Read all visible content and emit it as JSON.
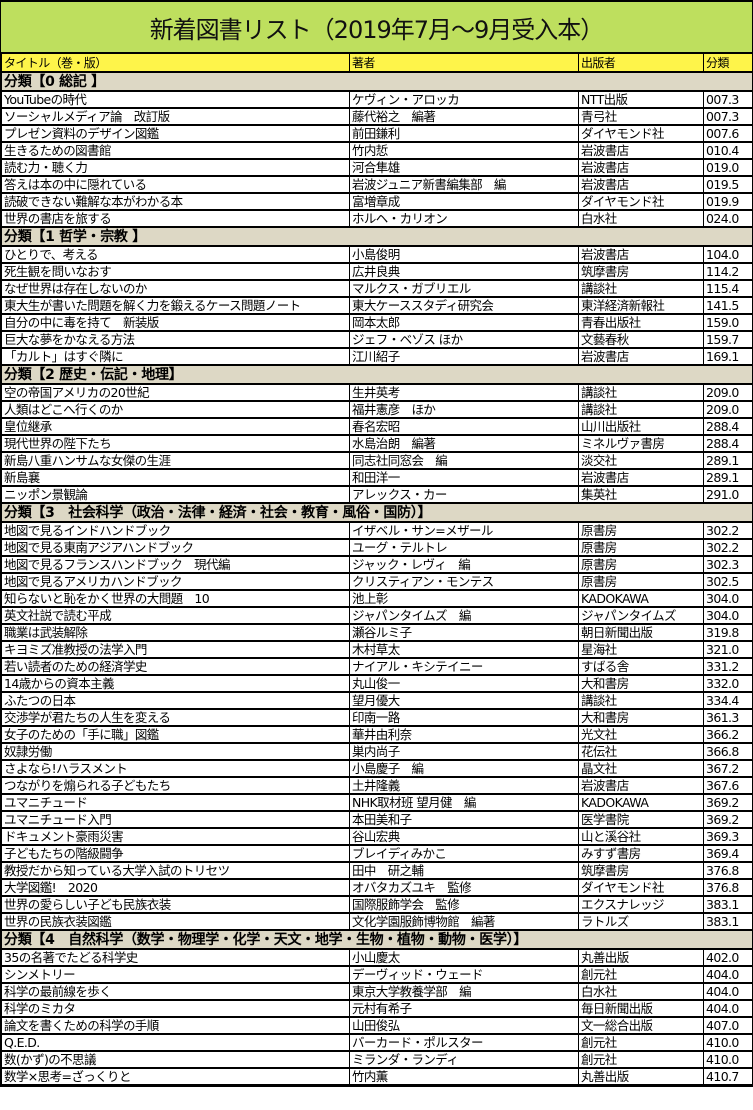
{
  "title": "新着図書リスト（2019年7月～9月受入本）",
  "columns": [
    "タイトル（巻・版）",
    "著者",
    "出版者",
    "分類"
  ],
  "colors": {
    "title_bg": "#bedf5e",
    "header_bg": "#fef44a",
    "category_bg": "#ddd8c5"
  },
  "sections": [
    {
      "label": "分類【0 総記 】",
      "rows": [
        [
          "YouTubeの時代",
          "ケヴィン・アロッカ",
          "NTT出版",
          "007.3"
        ],
        [
          "ソーシャルメディア論　改訂版",
          "藤代裕之　編著",
          "青弓社",
          "007.3"
        ],
        [
          "プレゼン資料のデザイン図鑑",
          "前田鎌利",
          "ダイヤモンド社",
          "007.6"
        ],
        [
          "生きるための図書館",
          "竹内悊",
          "岩波書店",
          "010.4"
        ],
        [
          "読む力・聴く力",
          "河合隼雄",
          "岩波書店",
          "019.0"
        ],
        [
          "答えは本の中に隠れている",
          "岩波ジュニア新書編集部　編",
          "岩波書店",
          "019.5"
        ],
        [
          "読破できない難解な本がわかる本",
          "富増章成",
          "ダイヤモンド社",
          "019.9"
        ],
        [
          "世界の書店を旅する",
          "ホルヘ・カリオン",
          "白水社",
          "024.0"
        ]
      ]
    },
    {
      "label": "分類【1 哲学・宗教 】",
      "rows": [
        [
          "ひとりで、考える",
          "小島俊明",
          "岩波書店",
          "104.0"
        ],
        [
          "死生観を問いなおす",
          "広井良典",
          "筑摩書房",
          "114.2"
        ],
        [
          "なぜ世界は存在しないのか",
          "マルクス・ガブリエル",
          "講談社",
          "115.4"
        ],
        [
          "東大生が書いた問題を解く力を鍛えるケース問題ノート",
          "東大ケーススタディ研究会",
          "東洋経済新報社",
          "141.5"
        ],
        [
          "自分の中に毒を持て　新装版",
          "岡本太郎",
          "青春出版社",
          "159.0"
        ],
        [
          "巨大な夢をかなえる方法",
          "ジェフ・ベゾス ほか",
          "文藝春秋",
          "159.7"
        ],
        [
          "「カルト」はすぐ隣に",
          "江川紹子",
          "岩波書店",
          "169.1"
        ]
      ]
    },
    {
      "label": "分類【2 歴史・伝記・地理】",
      "rows": [
        [
          "空の帝国アメリカの20世紀",
          "生井英考",
          "講談社",
          "209.0"
        ],
        [
          "人類はどこへ行くのか",
          "福井憲彦　ほか",
          "講談社",
          "209.0"
        ],
        [
          "皇位継承",
          "春名宏昭",
          "山川出版社",
          "288.4"
        ],
        [
          "現代世界の陛下たち",
          "水島治朗　編著",
          "ミネルヴァ書房",
          "288.4"
        ],
        [
          "新島八重ハンサムな女傑の生涯",
          "同志社同窓会　編",
          "淡交社",
          "289.1"
        ],
        [
          "新島襄",
          "和田洋一",
          "岩波書店",
          "289.1"
        ],
        [
          "ニッポン景観論",
          "アレックス・カー",
          "集英社",
          "291.0"
        ]
      ]
    },
    {
      "label": "分類【3　社会科学（政治・法律・経済・社会・教育・風俗・国防）】",
      "rows": [
        [
          "地図で見るインドハンドブック",
          "イザベル・サン=メザール",
          "原書房",
          "302.2"
        ],
        [
          "地図で見る東南アジアハンドブック",
          "ユーグ・テルトレ",
          "原書房",
          "302.2"
        ],
        [
          "地図で見るフランスハンドブック　現代編",
          "ジャック・レヴィ　編",
          "原書房",
          "302.3"
        ],
        [
          "地図で見るアメリカハンドブック",
          "クリスティアン・モンテス",
          "原書房",
          "302.5"
        ],
        [
          "知らないと恥をかく世界の大問題　10",
          "池上彰",
          "KADOKAWA",
          "304.0"
        ],
        [
          "英文社説で読む平成",
          "ジャパンタイムズ　編",
          "ジャパンタイムズ",
          "304.0"
        ],
        [
          "職業は武装解除",
          "瀬谷ルミ子",
          "朝日新聞出版",
          "319.8"
        ],
        [
          "キヨミズ准教授の法学入門",
          "木村草太",
          "星海社",
          "321.0"
        ],
        [
          "若い読者のための経済学史",
          "ナイアル・キシテイニー",
          "すばる舎",
          "331.2"
        ],
        [
          "14歳からの資本主義",
          "丸山俊一",
          "大和書房",
          "332.0"
        ],
        [
          "ふたつの日本",
          "望月優大",
          "講談社",
          "334.4"
        ],
        [
          "交渉学が君たちの人生を変える",
          "印南一路",
          "大和書房",
          "361.3"
        ],
        [
          "女子のための「手に職」図鑑",
          "華井由利奈",
          "光文社",
          "366.2"
        ],
        [
          "奴隷労働",
          "巣内尚子",
          "花伝社",
          "366.8"
        ],
        [
          "さよなら!ハラスメント",
          "小島慶子　編",
          "晶文社",
          "367.2"
        ],
        [
          "つながりを煽られる子どもたち",
          "土井隆義",
          "岩波書店",
          "367.6"
        ],
        [
          "ユマニチュード",
          "NHK取材班 望月健　編",
          "KADOKAWA",
          "369.2"
        ],
        [
          "ユマニチュード入門",
          "本田美和子",
          "医学書院",
          "369.2"
        ],
        [
          "ドキュメント豪雨災害",
          "谷山宏典",
          "山と溪谷社",
          "369.3"
        ],
        [
          "子どもたちの階級闘争",
          "ブレイディみかこ",
          "みすず書房",
          "369.4"
        ],
        [
          "教授だから知っている大学入試のトリセツ",
          "田中　研之輔",
          "筑摩書房",
          "376.8"
        ],
        [
          "大学図鑑!　2020",
          "オバタカズユキ　監修",
          "ダイヤモンド社",
          "376.8"
        ],
        [
          "世界の愛らしい子ども民族衣装",
          "国際服飾学会　監修",
          "エクスナレッジ",
          "383.1"
        ],
        [
          "世界の民族衣装図鑑",
          "文化学園服飾博物館　編著",
          "ラトルズ",
          "383.1"
        ]
      ]
    },
    {
      "label": "分類【4　自然科学（数学・物理学・化学・天文・地学・生物・植物・動物・医学）】",
      "rows": [
        [
          "35の名著でたどる科学史",
          "小山慶太",
          "丸善出版",
          "402.0"
        ],
        [
          "シンメトリー",
          "デーヴィッド・ウェード",
          "創元社",
          "404.0"
        ],
        [
          "科学の最前線を歩く",
          "東京大学教養学部　編",
          "白水社",
          "404.0"
        ],
        [
          "科学のミカタ",
          "元村有希子",
          "毎日新聞出版",
          "404.0"
        ],
        [
          "論文を書くための科学の手順",
          "山田俊弘",
          "文一総合出版",
          "407.0"
        ],
        [
          "Q.E.D.",
          "バーカード・ポルスター",
          "創元社",
          "410.0"
        ],
        [
          "数(かず)の不思議",
          "ミランダ・ランディ",
          "創元社",
          "410.0"
        ],
        [
          "数学×思考=ざっくりと",
          "竹内薫",
          "丸善出版",
          "410.7"
        ]
      ]
    }
  ]
}
